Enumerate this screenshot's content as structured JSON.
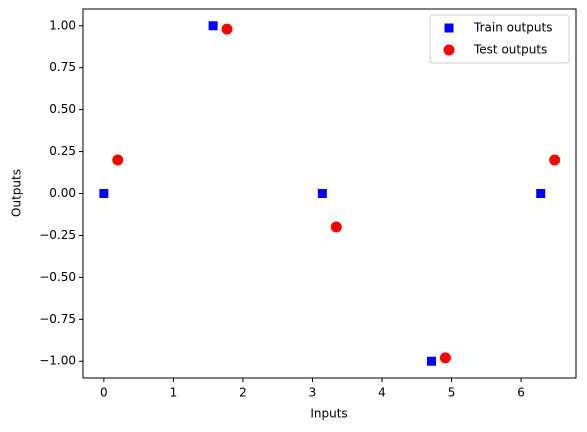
{
  "chart_data": {
    "type": "scatter",
    "xlabel": "Inputs",
    "ylabel": "Outputs",
    "xlim": [
      -0.3,
      6.79
    ],
    "ylim": [
      -1.1,
      1.1
    ],
    "xticks": [
      0,
      1,
      2,
      3,
      4,
      5,
      6
    ],
    "yticks": [
      {
        "value": 1,
        "label": "1.00"
      },
      0.75,
      {
        "value": 0.5,
        "label": "0.50"
      },
      0.25,
      {
        "value": 0,
        "label": "0.00"
      },
      {
        "value": -0.25,
        "label": "−0.25"
      },
      {
        "value": -0.5,
        "label": "−0.50"
      },
      {
        "value": -0.75,
        "label": "−0.75"
      },
      {
        "value": -1,
        "label": "−1.00"
      }
    ],
    "legend": "upper right",
    "series": [
      {
        "name": "Train outputs",
        "color": "#0000ff",
        "marker": "square",
        "x": [
          0,
          1.571,
          3.142,
          4.712,
          6.283
        ],
        "values": [
          0,
          1,
          0,
          -1,
          0
        ]
      },
      {
        "name": "Test outputs",
        "color": "#ff0000",
        "marker": "circle",
        "x": [
          0.2,
          1.771,
          3.342,
          4.912,
          6.483
        ],
        "values": [
          0.2,
          0.98,
          -0.2,
          -0.98,
          0.2
        ]
      }
    ]
  }
}
